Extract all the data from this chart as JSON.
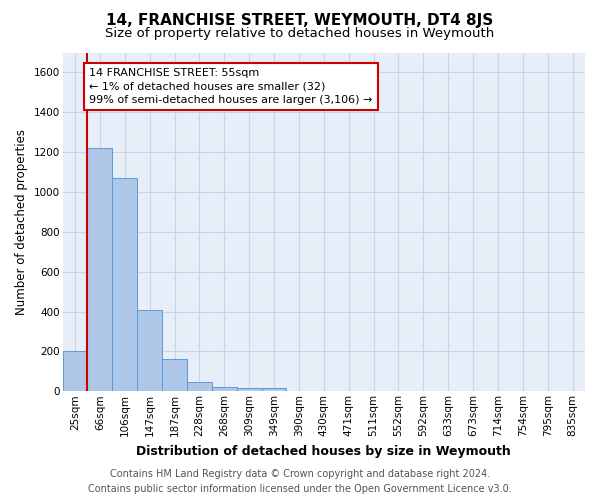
{
  "title": "14, FRANCHISE STREET, WEYMOUTH, DT4 8JS",
  "subtitle": "Size of property relative to detached houses in Weymouth",
  "xlabel": "Distribution of detached houses by size in Weymouth",
  "ylabel": "Number of detached properties",
  "categories": [
    "25sqm",
    "66sqm",
    "106sqm",
    "147sqm",
    "187sqm",
    "228sqm",
    "268sqm",
    "309sqm",
    "349sqm",
    "390sqm",
    "430sqm",
    "471sqm",
    "511sqm",
    "552sqm",
    "592sqm",
    "633sqm",
    "673sqm",
    "714sqm",
    "754sqm",
    "795sqm",
    "835sqm"
  ],
  "values": [
    200,
    1220,
    1068,
    410,
    160,
    48,
    22,
    15,
    15,
    0,
    0,
    0,
    0,
    0,
    0,
    0,
    0,
    0,
    0,
    0,
    0
  ],
  "bar_color": "#aec6e8",
  "bar_edge_color": "#5b9bd5",
  "ylim": [
    0,
    1700
  ],
  "yticks": [
    0,
    200,
    400,
    600,
    800,
    1000,
    1200,
    1400,
    1600
  ],
  "annotation_text": "14 FRANCHISE STREET: 55sqm\n← 1% of detached houses are smaller (32)\n99% of semi-detached houses are larger (3,106) →",
  "annotation_box_color": "#ffffff",
  "annotation_border_color": "#cc0000",
  "footer_line1": "Contains HM Land Registry data © Crown copyright and database right 2024.",
  "footer_line2": "Contains public sector information licensed under the Open Government Licence v3.0.",
  "background_color": "#ffffff",
  "plot_bg_color": "#e8eef8",
  "grid_color": "#c8d4e8",
  "title_fontsize": 11,
  "subtitle_fontsize": 9.5,
  "xlabel_fontsize": 9,
  "ylabel_fontsize": 8.5,
  "tick_fontsize": 7.5,
  "footer_fontsize": 7,
  "annot_fontsize": 8
}
